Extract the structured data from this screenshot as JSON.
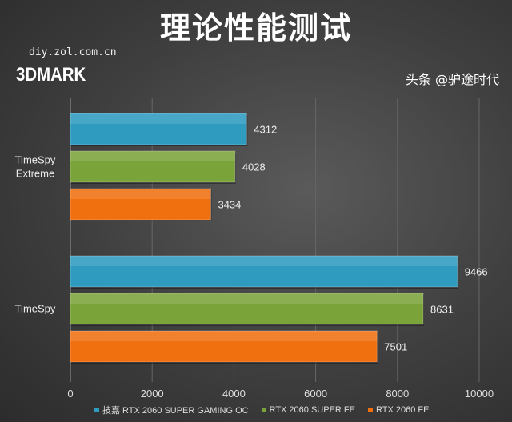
{
  "title": "理论性能测试",
  "site": "diy.zol.com.cn",
  "brand": "3DMARK",
  "watermark": "头条 @驴途时代",
  "chart_data": {
    "type": "bar",
    "orientation": "horizontal",
    "categories": [
      "TimeSpy Extreme",
      "TimeSpy"
    ],
    "series": [
      {
        "name": "技嘉 RTX 2060 SUPER GAMING OC",
        "color": "#2f9bbf",
        "values": [
          4312,
          9466
        ]
      },
      {
        "name": "RTX 2060 SUPER FE",
        "color": "#7aa33a",
        "values": [
          4028,
          8631
        ]
      },
      {
        "name": "RTX 2060 FE",
        "color": "#f07010",
        "values": [
          3434,
          7501
        ]
      }
    ],
    "xlim": [
      0,
      10000
    ],
    "xticks": [
      0,
      2000,
      4000,
      6000,
      8000,
      10000
    ],
    "grid": true,
    "legend": "bottom"
  }
}
